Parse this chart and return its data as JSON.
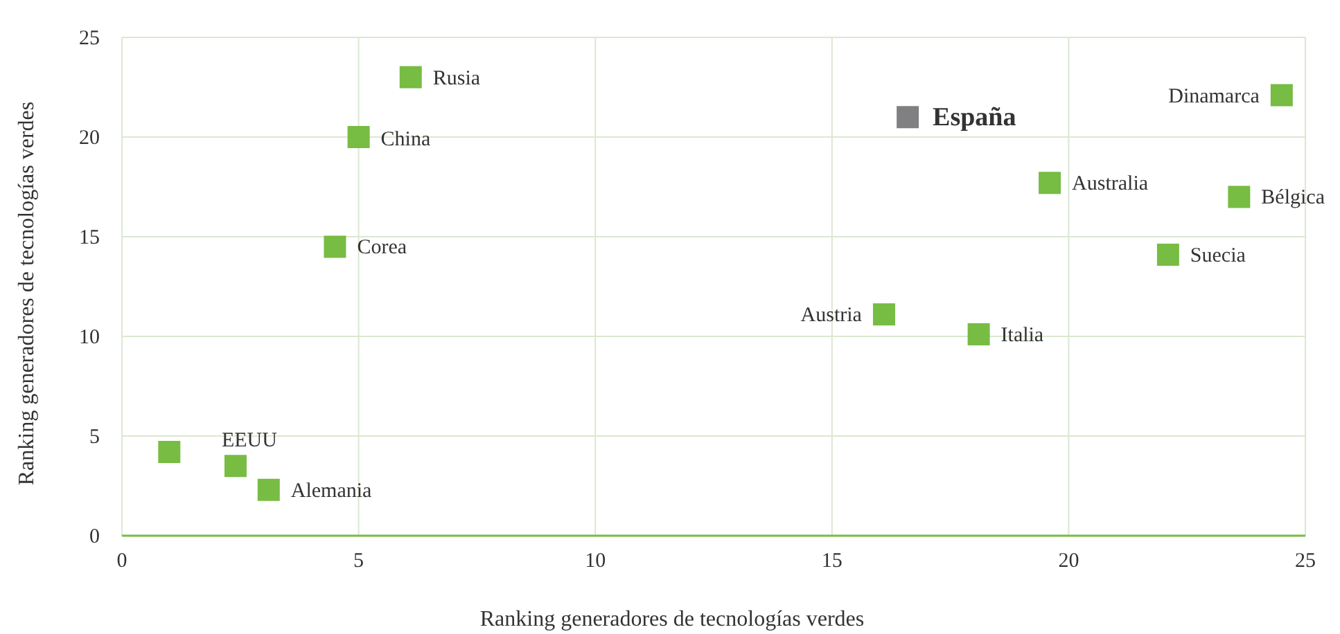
{
  "chart_data": {
    "type": "scatter",
    "xlabel": "Ranking generadores de tecnologías verdes",
    "ylabel": "Ranking generadores de tecnologías verdes",
    "xlim": [
      0,
      25
    ],
    "xticks": [
      0,
      5,
      10,
      15,
      20,
      25
    ],
    "ylim": [
      0,
      25
    ],
    "yticks": [
      0,
      5,
      10,
      15,
      20,
      25
    ],
    "grid": true,
    "marker": "square",
    "legend": false,
    "series": [
      {
        "name": "Rusia",
        "color": "#77bc43",
        "x": [
          6.1
        ],
        "values": [
          23.0
        ]
      },
      {
        "name": "China",
        "color": "#77bc43",
        "x": [
          5.0
        ],
        "values": [
          20.0
        ]
      },
      {
        "name": "Corea",
        "color": "#77bc43",
        "x": [
          4.5
        ],
        "values": [
          14.5
        ]
      },
      {
        "color": "#77bc43",
        "x": [
          1.0
        ],
        "values": [
          4.2
        ]
      },
      {
        "name": "EEUU",
        "color": "#77bc43",
        "x": [
          2.4
        ],
        "values": [
          3.5
        ]
      },
      {
        "name": "Alemania",
        "color": "#77bc43",
        "x": [
          3.1
        ],
        "values": [
          2.3
        ]
      },
      {
        "name": "España",
        "color": "#808083",
        "x": [
          16.6
        ],
        "values": [
          21.0
        ]
      },
      {
        "name": "Dinamarca",
        "color": "#77bc43",
        "x": [
          24.5
        ],
        "values": [
          22.1
        ]
      },
      {
        "name": "Australia",
        "color": "#77bc43",
        "x": [
          19.6
        ],
        "values": [
          17.7
        ]
      },
      {
        "name": "Bélgica",
        "color": "#77bc43",
        "x": [
          23.6
        ],
        "values": [
          17.0
        ]
      },
      {
        "name": "Suecia",
        "color": "#77bc43",
        "x": [
          22.1
        ],
        "values": [
          14.1
        ]
      },
      {
        "name": "Austria",
        "color": "#77bc43",
        "x": [
          16.1
        ],
        "values": [
          11.1
        ]
      },
      {
        "name": "Italia",
        "color": "#77bc43",
        "x": [
          18.1
        ],
        "values": [
          10.1
        ]
      }
    ]
  }
}
